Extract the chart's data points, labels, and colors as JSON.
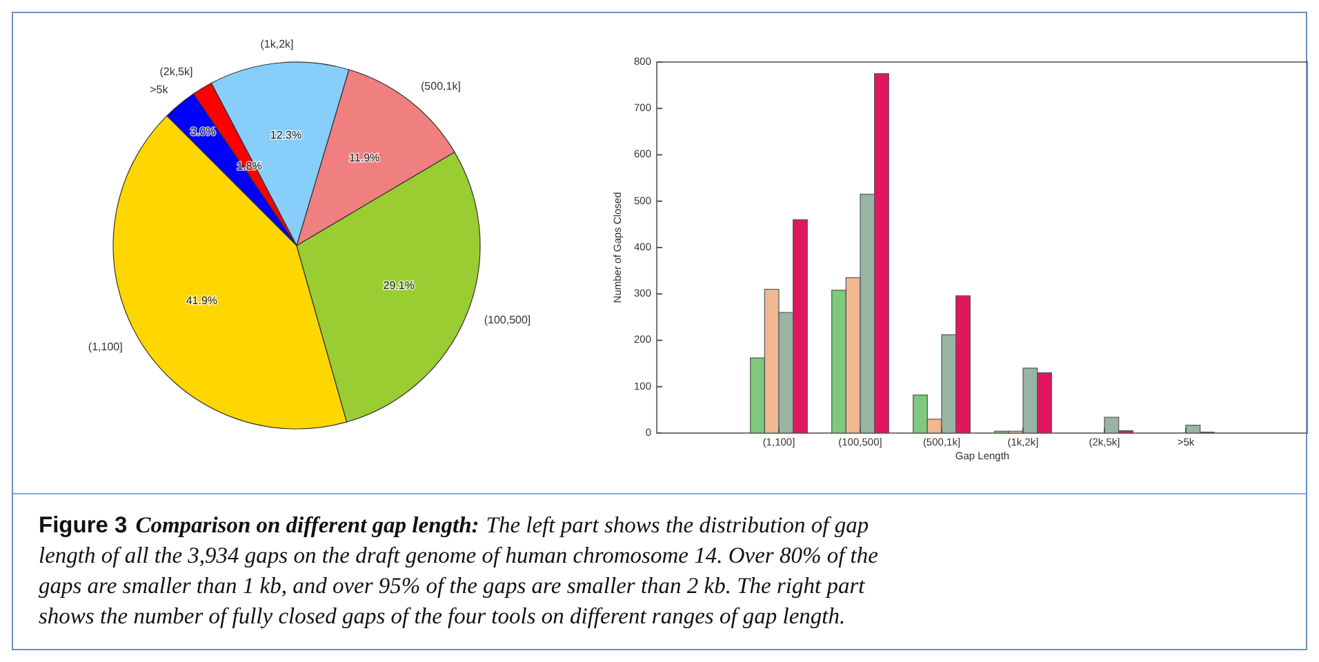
{
  "chart_data": [
    {
      "type": "pie",
      "categories": [
        "(1,100]",
        "(100,500]",
        "(500,1k]",
        "(1k,2k]",
        "(2k,5k]",
        ">5k"
      ],
      "values": [
        41.9,
        29.1,
        11.9,
        12.3,
        1.8,
        3.0
      ],
      "colors": [
        "#ffd700",
        "#9acd32",
        "#f08080",
        "#87cefa",
        "#ff0000",
        "#0000ff"
      ],
      "value_labels": [
        "41.9%",
        "29.1%",
        "11.9%",
        "12.3%",
        "1.8%",
        "3.0%"
      ]
    },
    {
      "type": "bar",
      "categories": [
        "(1,100]",
        "(100,500]",
        "(500,1k]",
        "(1k,2k]",
        "(2k,5k]",
        ">5k"
      ],
      "xlabel": "Gap Length",
      "ylabel": "Number of Gaps Closed",
      "ylim": [
        0,
        800
      ],
      "yticks": [
        0,
        100,
        200,
        300,
        400,
        500,
        600,
        700,
        800
      ],
      "series": [
        {
          "color": "#7dc97d",
          "values": [
            162,
            308,
            82,
            4,
            0,
            0
          ]
        },
        {
          "color": "#f0b891",
          "values": [
            310,
            335,
            30,
            4,
            0,
            0
          ]
        },
        {
          "color": "#98b5a3",
          "values": [
            260,
            515,
            212,
            140,
            34,
            17
          ]
        },
        {
          "color": "#e0175e",
          "values": [
            460,
            775,
            296,
            130,
            5,
            2
          ]
        }
      ]
    },
    {
      "type": "other",
      "title": "Figure 3",
      "subtitle": "Comparison on different gap length:",
      "annotations": [
        "The left part shows the distribution of gap",
        "length of all the 3,934 gaps on the draft genome of human chromosome 14. Over 80% of the",
        "gaps are smaller than 1 kb, and over 95% of the gaps are smaller than 2 kb. The right part",
        "shows the number of fully closed gaps of the four tools on different ranges of gap length."
      ]
    }
  ]
}
